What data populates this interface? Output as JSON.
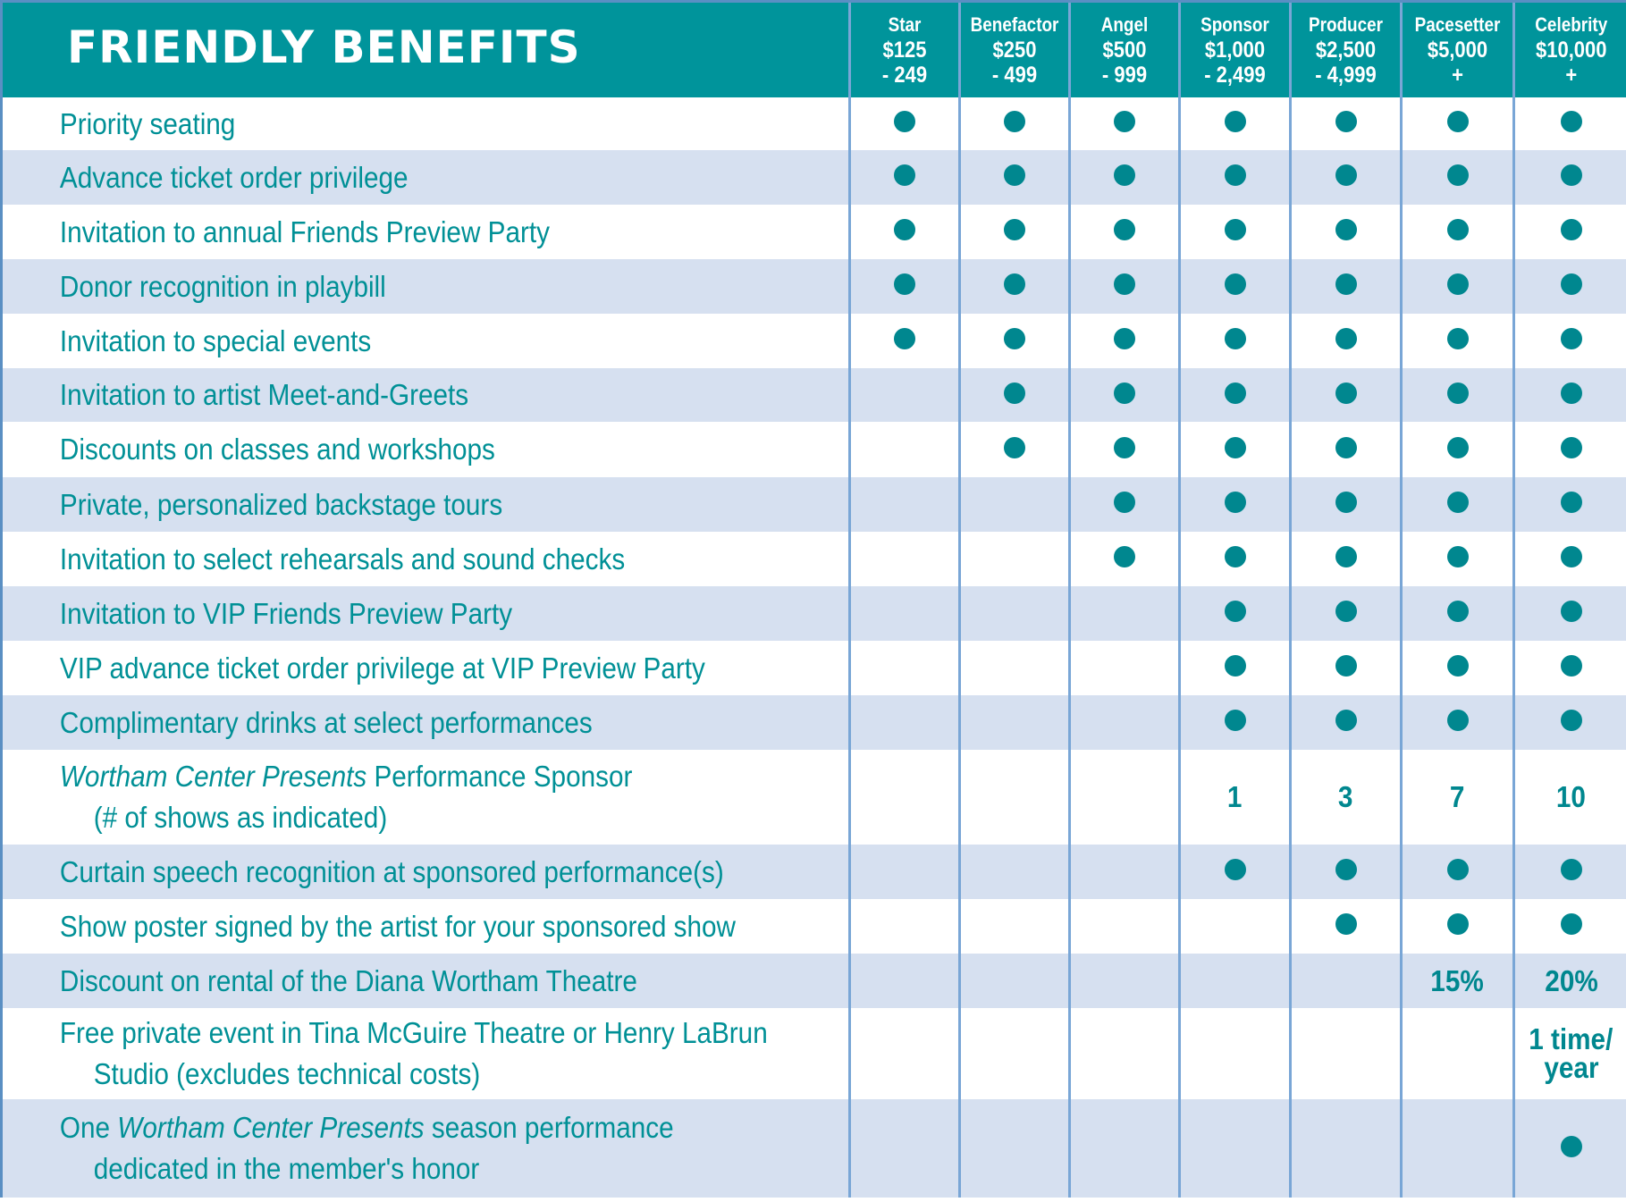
{
  "title": "FRIENDLY BENEFITS",
  "tiers": [
    {
      "name": "Star",
      "range1": "$125",
      "range2": "- 249"
    },
    {
      "name": "Benefactor",
      "range1": "$250",
      "range2": "- 499"
    },
    {
      "name": "Angel",
      "range1": "$500",
      "range2": "- 999"
    },
    {
      "name": "Sponsor",
      "range1": "$1,000",
      "range2": "- 2,499"
    },
    {
      "name": "Producer",
      "range1": "$2,500",
      "range2": "- 4,999"
    },
    {
      "name": "Pacesetter",
      "range1": "$5,000",
      "range2": "+"
    },
    {
      "name": "Celebrity",
      "range1": "$10,000",
      "range2": "+"
    }
  ],
  "benefits": [
    {
      "lines": [
        [
          {
            "t": "Priority seating"
          }
        ]
      ],
      "cells": [
        "dot",
        "dot",
        "dot",
        "dot",
        "dot",
        "dot",
        "dot"
      ]
    },
    {
      "lines": [
        [
          {
            "t": "Advance ticket order privilege"
          }
        ]
      ],
      "cells": [
        "dot",
        "dot",
        "dot",
        "dot",
        "dot",
        "dot",
        "dot"
      ]
    },
    {
      "lines": [
        [
          {
            "t": "Invitation to annual Friends Preview Party"
          }
        ]
      ],
      "cells": [
        "dot",
        "dot",
        "dot",
        "dot",
        "dot",
        "dot",
        "dot"
      ]
    },
    {
      "lines": [
        [
          {
            "t": "Donor recognition in playbill"
          }
        ]
      ],
      "cells": [
        "dot",
        "dot",
        "dot",
        "dot",
        "dot",
        "dot",
        "dot"
      ]
    },
    {
      "lines": [
        [
          {
            "t": "Invitation to special events"
          }
        ]
      ],
      "cells": [
        "dot",
        "dot",
        "dot",
        "dot",
        "dot",
        "dot",
        "dot"
      ]
    },
    {
      "lines": [
        [
          {
            "t": "Invitation to artist Meet-and-Greets"
          }
        ]
      ],
      "cells": [
        "",
        "dot",
        "dot",
        "dot",
        "dot",
        "dot",
        "dot"
      ]
    },
    {
      "lines": [
        [
          {
            "t": "Discounts on classes and workshops"
          }
        ]
      ],
      "cells": [
        "",
        "dot",
        "dot",
        "dot",
        "dot",
        "dot",
        "dot"
      ]
    },
    {
      "lines": [
        [
          {
            "t": "Private, personalized backstage tours"
          }
        ]
      ],
      "cells": [
        "",
        "",
        "dot",
        "dot",
        "dot",
        "dot",
        "dot"
      ]
    },
    {
      "lines": [
        [
          {
            "t": "Invitation to select rehearsals and sound checks"
          }
        ]
      ],
      "cells": [
        "",
        "",
        "dot",
        "dot",
        "dot",
        "dot",
        "dot"
      ]
    },
    {
      "lines": [
        [
          {
            "t": "Invitation to VIP Friends Preview Party"
          }
        ]
      ],
      "cells": [
        "",
        "",
        "",
        "dot",
        "dot",
        "dot",
        "dot"
      ]
    },
    {
      "lines": [
        [
          {
            "t": "VIP advance ticket order privilege at VIP Preview Party"
          }
        ]
      ],
      "cells": [
        "",
        "",
        "",
        "dot",
        "dot",
        "dot",
        "dot"
      ]
    },
    {
      "lines": [
        [
          {
            "t": "Complimentary drinks at select performances"
          }
        ]
      ],
      "cells": [
        "",
        "",
        "",
        "dot",
        "dot",
        "dot",
        "dot"
      ]
    },
    {
      "lines": [
        [
          {
            "t": "Wortham Center Presents",
            "i": true
          },
          {
            "t": " Performance Sponsor"
          }
        ],
        [
          {
            "t": "(# of shows as indicated)"
          }
        ]
      ],
      "cells": [
        "",
        "",
        "",
        "1",
        "3",
        "7",
        "10"
      ]
    },
    {
      "lines": [
        [
          {
            "t": "Curtain speech recognition at sponsored performance(s)"
          }
        ]
      ],
      "cells": [
        "",
        "",
        "",
        "dot",
        "dot",
        "dot",
        "dot"
      ]
    },
    {
      "lines": [
        [
          {
            "t": "Show poster signed by the artist for your sponsored show"
          }
        ]
      ],
      "cells": [
        "",
        "",
        "",
        "",
        "dot",
        "dot",
        "dot"
      ]
    },
    {
      "lines": [
        [
          {
            "t": "Discount on rental of the Diana Wortham Theatre"
          }
        ]
      ],
      "cells": [
        "",
        "",
        "",
        "",
        "",
        "15%",
        "20%"
      ]
    },
    {
      "lines": [
        [
          {
            "t": "Free private event in Tina McGuire Theatre or Henry LaBrun"
          }
        ],
        [
          {
            "t": "Studio (excludes technical costs)"
          }
        ]
      ],
      "cells": [
        "",
        "",
        "",
        "",
        "",
        "",
        "1 time/\nyear"
      ]
    },
    {
      "lines": [
        [
          {
            "t": "One "
          },
          {
            "t": "Wortham Center Presents",
            "i": true
          },
          {
            "t": " season performance"
          }
        ],
        [
          {
            "t": "dedicated in the member's honor"
          }
        ]
      ],
      "cells": [
        "",
        "",
        "",
        "",
        "",
        "",
        "dot"
      ]
    }
  ],
  "colors": {
    "header_bg": "#00949b",
    "header_text": "#ffffff",
    "row_shade": "#d6e0f0",
    "row_plain": "#ffffff",
    "benefit_text": "#009096",
    "dot": "#00878f",
    "rule": "#79a6d6"
  }
}
